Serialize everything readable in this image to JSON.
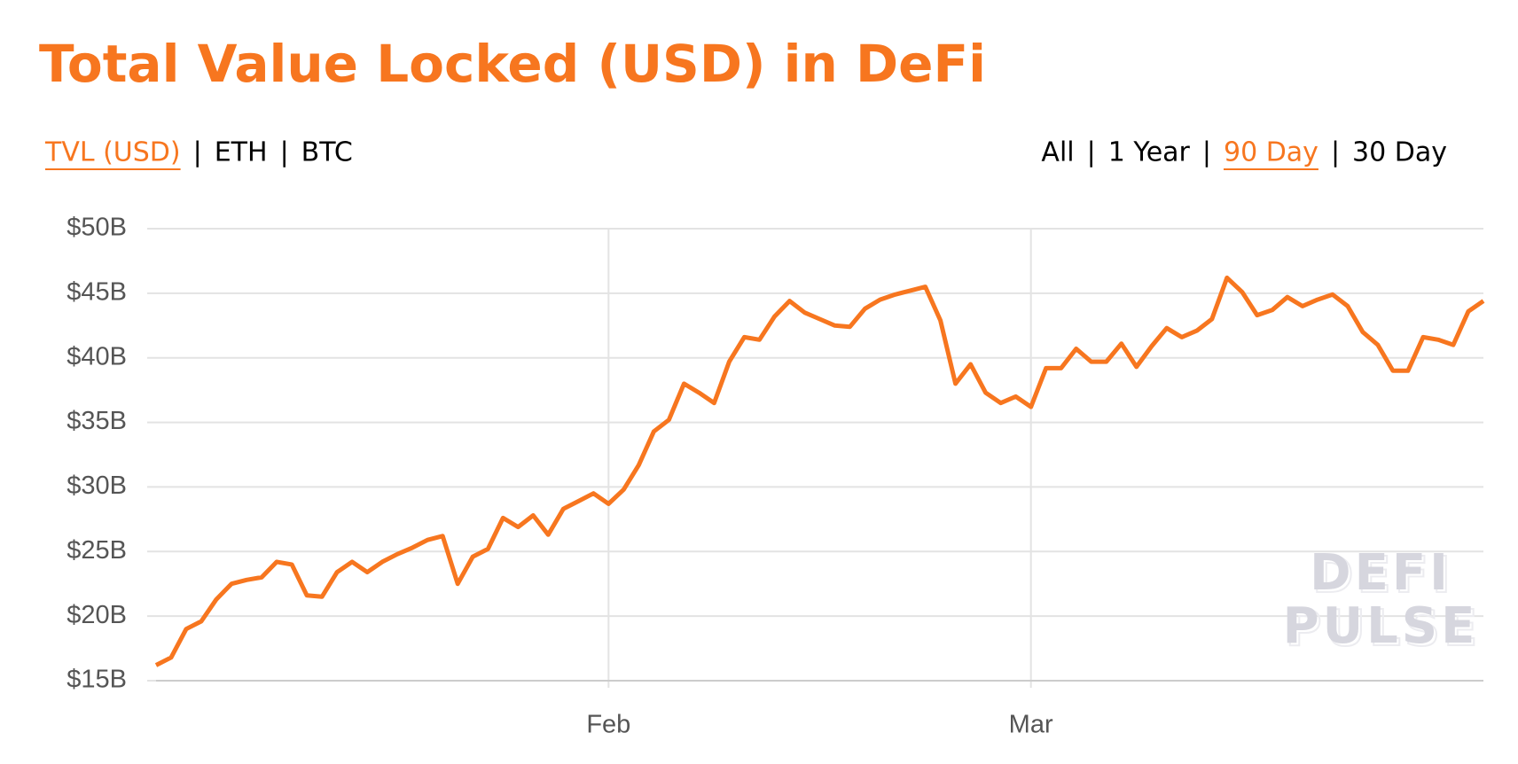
{
  "title": "Total Value Locked (USD) in DeFi",
  "separator": "|",
  "tabs": {
    "items": [
      "TVL (USD)",
      "ETH",
      "BTC"
    ],
    "selected": 0
  },
  "ranges": {
    "items": [
      "All",
      "1 Year",
      "90 Day",
      "30 Day"
    ],
    "selected": 2
  },
  "watermark": [
    "DEFI",
    "PULSE"
  ],
  "chart_data": {
    "type": "line",
    "color": "#f7761f",
    "grid": true,
    "categories": [
      null,
      null,
      null,
      null,
      null,
      null,
      null,
      null,
      null,
      null,
      null,
      null,
      null,
      null,
      null,
      null,
      null,
      null,
      null,
      null,
      null,
      null,
      null,
      null,
      null,
      null,
      null,
      null,
      null,
      null,
      "Feb",
      null,
      null,
      null,
      null,
      null,
      null,
      null,
      null,
      null,
      null,
      null,
      null,
      null,
      null,
      null,
      null,
      null,
      null,
      null,
      null,
      null,
      null,
      null,
      null,
      null,
      null,
      null,
      "Mar",
      null,
      null,
      null,
      null,
      null,
      null,
      null,
      null,
      null,
      null,
      null,
      null,
      null,
      null,
      null,
      null,
      null,
      null,
      null,
      null,
      null,
      null,
      null,
      null,
      null,
      null,
      null,
      null,
      null,
      null
    ],
    "values": [
      16.2,
      16.8,
      19.0,
      19.6,
      21.3,
      22.5,
      22.8,
      23.0,
      24.2,
      24.0,
      21.6,
      21.5,
      23.4,
      24.2,
      23.4,
      24.2,
      24.8,
      25.3,
      25.9,
      26.2,
      22.5,
      24.6,
      25.2,
      27.6,
      26.9,
      27.8,
      26.3,
      28.3,
      28.9,
      29.5,
      28.7,
      29.8,
      31.7,
      34.3,
      35.2,
      38.0,
      37.3,
      36.5,
      39.7,
      41.6,
      41.4,
      43.2,
      44.4,
      43.5,
      43.0,
      42.5,
      42.4,
      43.8,
      44.5,
      44.9,
      45.2,
      45.5,
      42.9,
      38.0,
      39.5,
      37.3,
      36.5,
      37.0,
      36.2,
      39.2,
      39.2,
      40.7,
      39.7,
      39.7,
      41.1,
      39.3,
      40.9,
      42.3,
      41.6,
      42.1,
      43.0,
      46.2,
      45.1,
      43.3,
      43.7,
      44.7,
      44.0,
      44.5,
      44.9,
      44.0,
      42.0,
      41.0,
      39.0,
      39.0,
      41.6,
      41.4,
      41.0,
      43.6,
      44.4
    ],
    "ylim": [
      15,
      50
    ],
    "yticks": [
      {
        "value": 15,
        "label": "$15B"
      },
      {
        "value": 20,
        "label": "$20B"
      },
      {
        "value": 25,
        "label": "$25B"
      },
      {
        "value": 30,
        "label": "$30B"
      },
      {
        "value": 35,
        "label": "$35B"
      },
      {
        "value": 40,
        "label": "$40B"
      },
      {
        "value": 45,
        "label": "$45B"
      },
      {
        "value": 50,
        "label": "$50B"
      }
    ]
  }
}
